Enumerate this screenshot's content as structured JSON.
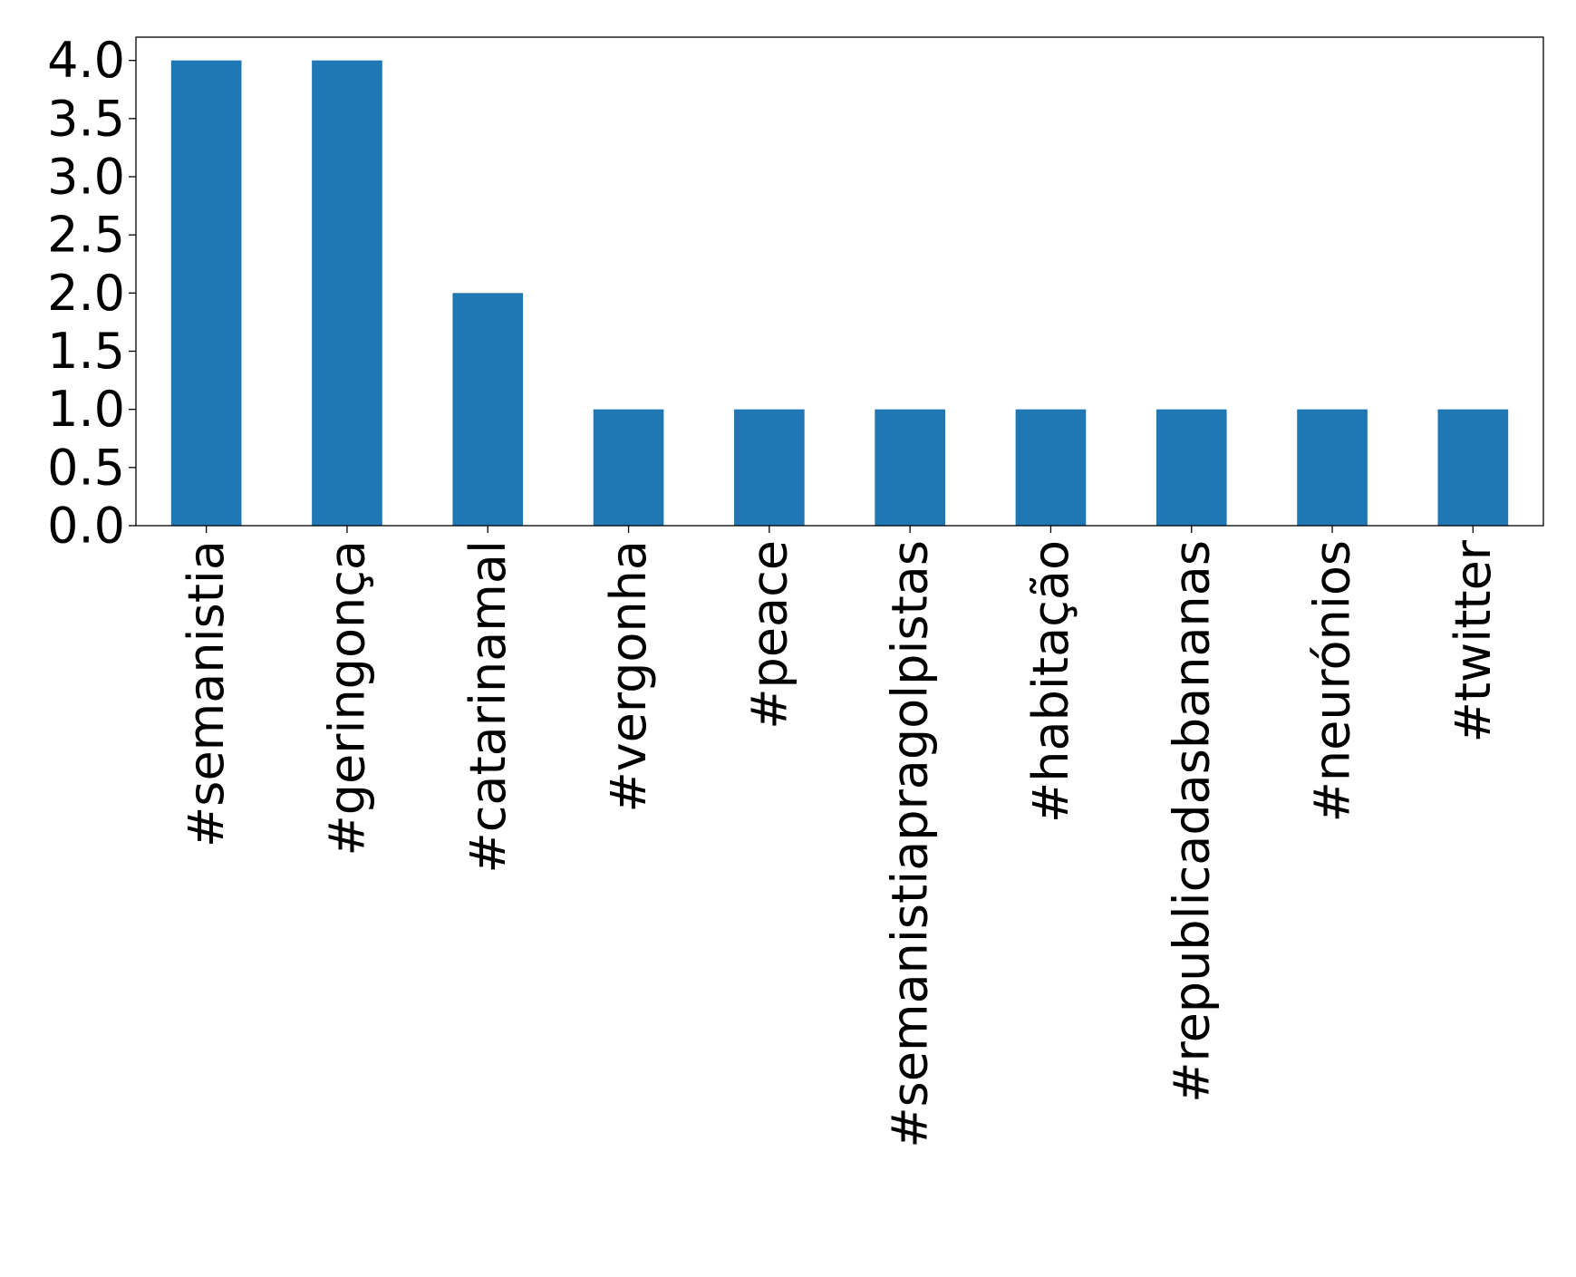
{
  "chart_data": {
    "type": "bar",
    "title": "",
    "xlabel": "",
    "ylabel": "",
    "categories": [
      "#semanistia",
      "#geringonça",
      "#catarinamal",
      "#vergonha",
      "#peace",
      "#semanistiapragolpistas",
      "#habitação",
      "#republicadasbananas",
      "#neurónios",
      "#twitter"
    ],
    "values": [
      4,
      4,
      2,
      1,
      1,
      1,
      1,
      1,
      1,
      1
    ],
    "ylim": [
      0,
      4.2
    ],
    "yticks": [
      "0.0",
      "0.5",
      "1.0",
      "1.5",
      "2.0",
      "2.5",
      "3.0",
      "3.5",
      "4.0"
    ],
    "bar_color": "#1f77b4",
    "grid": false,
    "legend": "none"
  }
}
